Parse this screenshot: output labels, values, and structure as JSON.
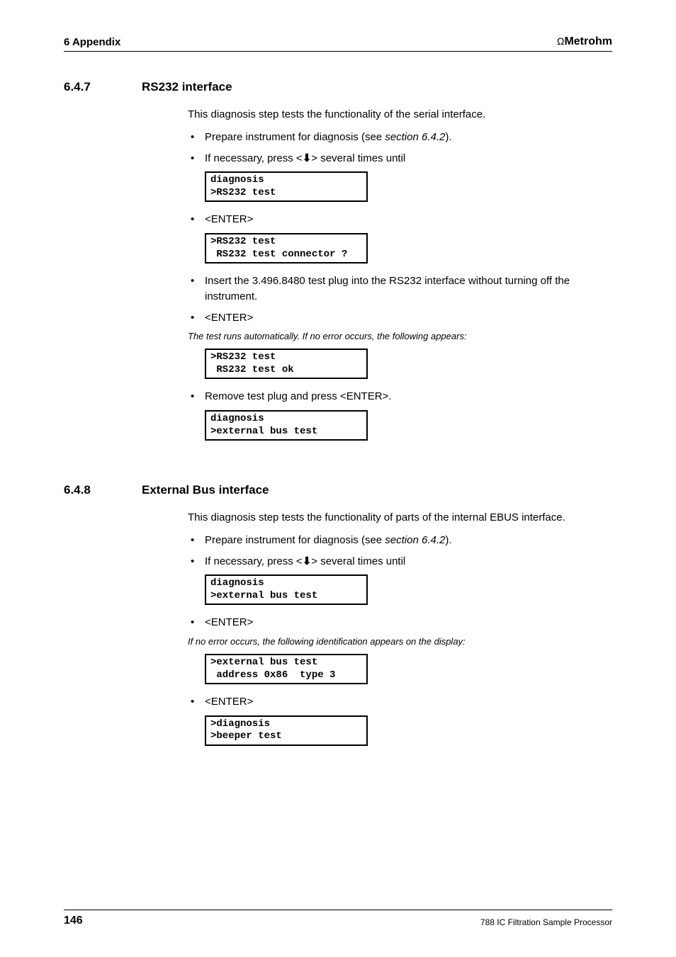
{
  "header": {
    "chapter": "6  Appendix",
    "brand_prefix": "Ω",
    "brand": "Metrohm"
  },
  "section1": {
    "num": "6.4.7",
    "title": "RS232 interface",
    "intro": "This diagnosis step tests the functionality of the serial interface.",
    "b1_pre": "Prepare instrument for diagnosis (see ",
    "b1_ref": "section 6.4.2",
    "b1_post": ").",
    "b2_pre": "If necessary, press <",
    "b2_post": "> several times until",
    "lcd1": "diagnosis\n>RS232 test",
    "b3": "<ENTER>",
    "lcd2": ">RS232 test\n RS232 test connector ?",
    "b4": "Insert the 3.496.8480 test plug into the RS232 interface without turning off the instrument.",
    "b5": "<ENTER>",
    "note1": "The test runs automatically. If no error occurs, the following appears:",
    "lcd3": ">RS232 test\n RS232 test ok",
    "b6": "Remove test plug and press <ENTER>.",
    "lcd4": "diagnosis\n>external bus test"
  },
  "section2": {
    "num": "6.4.8",
    "title": "External Bus interface",
    "intro": "This diagnosis step tests the functionality of parts of the internal EBUS interface.",
    "b1_pre": "Prepare instrument for diagnosis (see ",
    "b1_ref": "section 6.4.2",
    "b1_post": ").",
    "b2_pre": "If necessary, press <",
    "b2_post": "> several times until",
    "lcd1": "diagnosis\n>external bus test",
    "b3": "<ENTER>",
    "note1": "If no error occurs, the following identification appears on the display:",
    "lcd2": ">external bus test\n address 0x86  type 3",
    "b4": "<ENTER>",
    "lcd3": ">diagnosis\n>beeper test"
  },
  "footer": {
    "page": "146",
    "doc": "788 IC Filtration Sample Processor"
  }
}
